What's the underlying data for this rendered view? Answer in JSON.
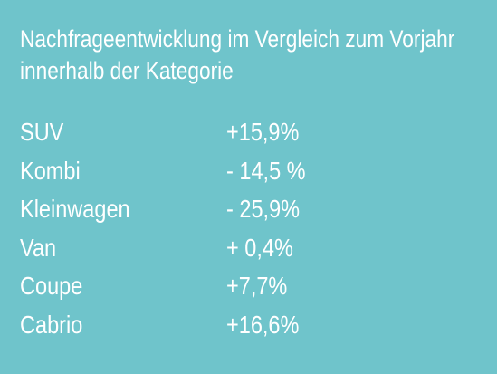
{
  "header": {
    "title_lines": [
      "Nachfrageentwicklung im Vergleich zum Vorjahr",
      "innerhalb der Kategorie"
    ]
  },
  "table": {
    "rows": [
      [
        "SUV",
        "+15,9%"
      ],
      [
        "Kombi",
        "- 14,5 %"
      ],
      [
        "Kleinwagen",
        "- 25,9%"
      ],
      [
        "Van",
        "+ 0,4%"
      ],
      [
        "Coupe",
        "+7,7%"
      ],
      [
        "Cabrio",
        "+16,6%"
      ]
    ]
  }
}
